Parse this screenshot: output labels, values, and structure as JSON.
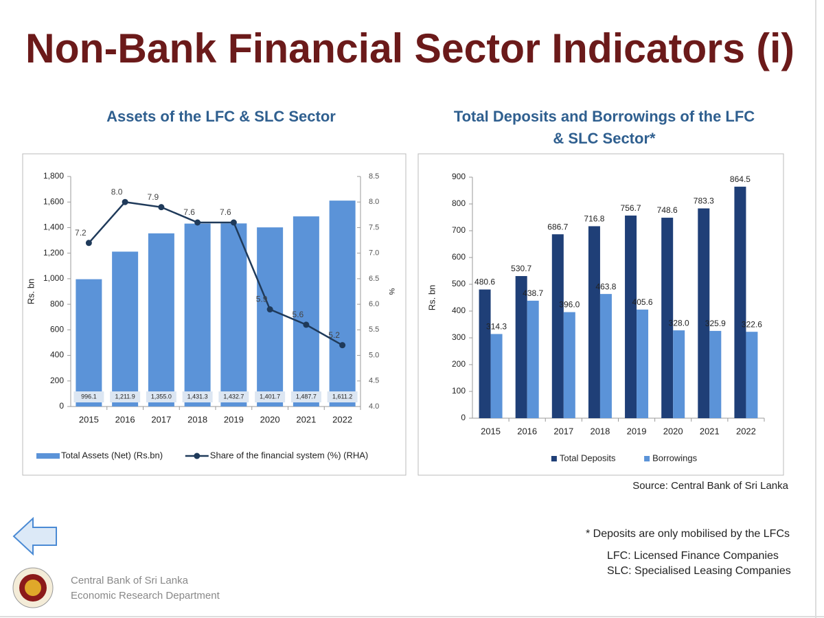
{
  "title": "Non-Bank Financial Sector Indicators (i)",
  "chart_data": [
    {
      "type": "bar",
      "title": "Assets of the LFC & SLC Sector",
      "categories": [
        "2015",
        "2016",
        "2017",
        "2018",
        "2019",
        "2020",
        "2021",
        "2022"
      ],
      "ylabel": "Rs. bn",
      "y2label": "%",
      "series": [
        {
          "name": "Total Assets (Net) (Rs.bn)",
          "color": "#5b93d8",
          "label_position": "base",
          "values": [
            996.1,
            1211.9,
            1355.0,
            1431.3,
            1432.7,
            1401.7,
            1487.7,
            1611.2
          ],
          "value_labels": [
            "996.1",
            "1,211.9",
            "1,355.0",
            "1,431.3",
            "1,432.7",
            "1,401.7",
            "1,487.7",
            "1,611.2"
          ]
        },
        {
          "name": "Share of the financial system (%) (RHA)",
          "color": "#1f3a5a",
          "type": "line",
          "axis": "y2",
          "values": [
            7.2,
            8.0,
            7.9,
            7.6,
            7.6,
            5.9,
            5.6,
            5.2
          ],
          "value_labels": [
            "7.2",
            "8.0",
            "7.9",
            "7.6",
            "7.6",
            "5.9",
            "5.6",
            "5.2"
          ]
        }
      ],
      "ylim": [
        0,
        1800
      ],
      "yticks": [
        0,
        200,
        400,
        600,
        800,
        {
          "value": 1000,
          "label": "1,000"
        },
        {
          "value": 1200,
          "label": "1,200"
        },
        {
          "value": 1400,
          "label": "1,400"
        },
        {
          "value": 1600,
          "label": "1,600"
        },
        {
          "value": 1800,
          "label": "1,800"
        }
      ],
      "y2lim": [
        4.0,
        8.5
      ],
      "y2ticks": [
        {
          "value": 4,
          "label": "4.0"
        },
        4.5,
        {
          "value": 5,
          "label": "5.0"
        },
        5.5,
        {
          "value": 6,
          "label": "6.0"
        },
        6.5,
        {
          "value": 7,
          "label": "7.0"
        },
        7.5,
        {
          "value": 8,
          "label": "8.0"
        },
        8.5
      ]
    },
    {
      "type": "bar",
      "title": "Total Deposits and Borrowings of the LFC & SLC Sector*",
      "categories": [
        "2015",
        "2016",
        "2017",
        "2018",
        "2019",
        "2020",
        "2021",
        "2022"
      ],
      "ylabel": "Rs. bn",
      "series": [
        {
          "name": "Total Deposits",
          "color": "#1f3f77",
          "label_position": "top",
          "values": [
            480.6,
            530.7,
            686.7,
            716.8,
            756.7,
            748.6,
            783.3,
            864.5
          ]
        },
        {
          "name": "Borrowings",
          "color": "#5b93d8",
          "label_position": "top",
          "values": [
            314.3,
            438.7,
            396.0,
            463.8,
            405.6,
            328.0,
            325.9,
            322.6
          ],
          "value_labels": [
            "314.3",
            "438.7",
            "396.0",
            "463.8",
            "405.6",
            "328.0",
            "325.9",
            "322.6"
          ]
        }
      ],
      "ylim": [
        0,
        900
      ],
      "yticks": [
        0,
        100,
        200,
        300,
        400,
        500,
        600,
        700,
        800,
        900
      ]
    }
  ],
  "source": "Source: Central Bank of Sri Lanka",
  "notes": [
    "* Deposits are only mobilised by the LFCs",
    "LFC: Licensed Finance Companies",
    "SLC: Specialised Leasing Companies"
  ],
  "footer": [
    "Central Bank of Sri Lanka",
    "Economic Research Department"
  ]
}
